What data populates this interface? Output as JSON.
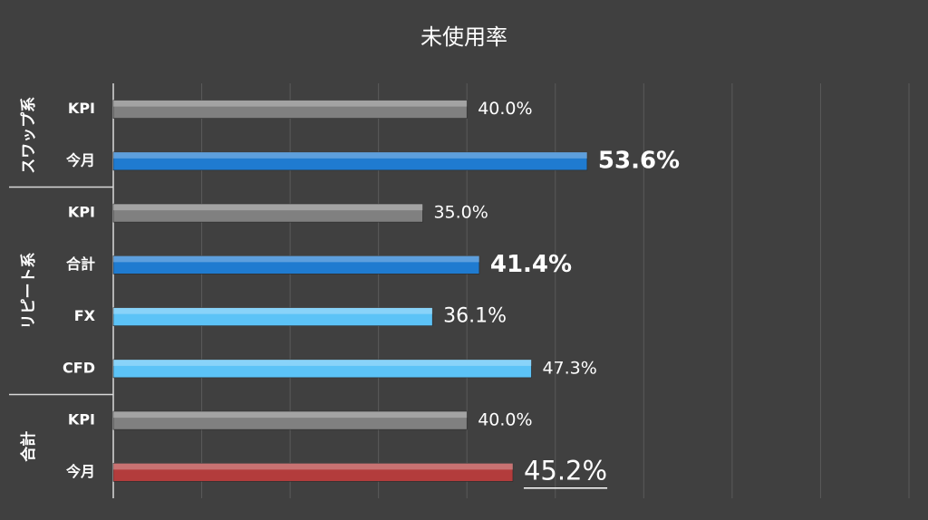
{
  "chart_data": {
    "type": "bar",
    "orientation": "horizontal",
    "title": "未使用率",
    "xlim": [
      0,
      90
    ],
    "xticks": [
      0,
      10,
      20,
      30,
      40,
      50,
      60,
      70,
      80,
      90
    ],
    "grid": true,
    "groups": [
      {
        "name": "スワップ系",
        "categories": [
          "KPI",
          "今月"
        ],
        "values": [
          40.0,
          53.6
        ],
        "value_labels": [
          "40.0%",
          "53.6%"
        ],
        "colors": [
          "#808080",
          "#1f7bd0"
        ],
        "label_style": [
          "normal",
          "bold"
        ]
      },
      {
        "name": "リピート系",
        "categories": [
          "KPI",
          "合計",
          "FX",
          "CFD"
        ],
        "values": [
          35.0,
          41.4,
          36.1,
          47.3
        ],
        "value_labels": [
          "35.0%",
          "41.4%",
          "36.1%",
          "47.3%"
        ],
        "colors": [
          "#808080",
          "#1f7bd0",
          "#5cc3f7",
          "#5cc3f7"
        ],
        "label_style": [
          "normal",
          "bold",
          "medium",
          "normal"
        ]
      },
      {
        "name": "合計",
        "categories": [
          "KPI",
          "今月"
        ],
        "values": [
          40.0,
          45.2
        ],
        "value_labels": [
          "40.0%",
          "45.2%"
        ],
        "colors": [
          "#808080",
          "#b33c3c"
        ],
        "label_style": [
          "normal",
          "bold-underline"
        ]
      }
    ]
  }
}
